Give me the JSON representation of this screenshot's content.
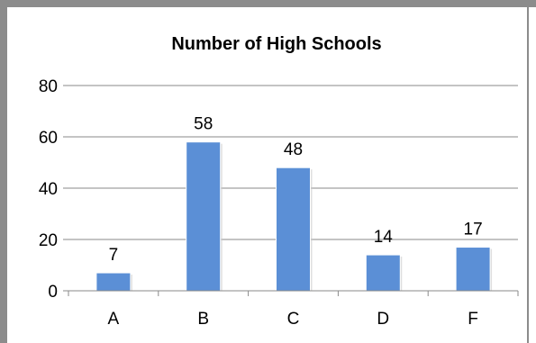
{
  "chart_data": {
    "type": "bar",
    "title": "Number of High Schools",
    "categories": [
      "A",
      "B",
      "C",
      "D",
      "F"
    ],
    "values": [
      7,
      58,
      48,
      14,
      17
    ],
    "data_labels": [
      "7",
      "58",
      "48",
      "14",
      "17"
    ],
    "xlabel": "",
    "ylabel": "",
    "ylim": [
      0,
      80
    ],
    "yticks": [
      "0",
      "20",
      "40",
      "60",
      "80"
    ],
    "grid": true,
    "legend": "none",
    "bar_color": "#5b8fd6"
  }
}
